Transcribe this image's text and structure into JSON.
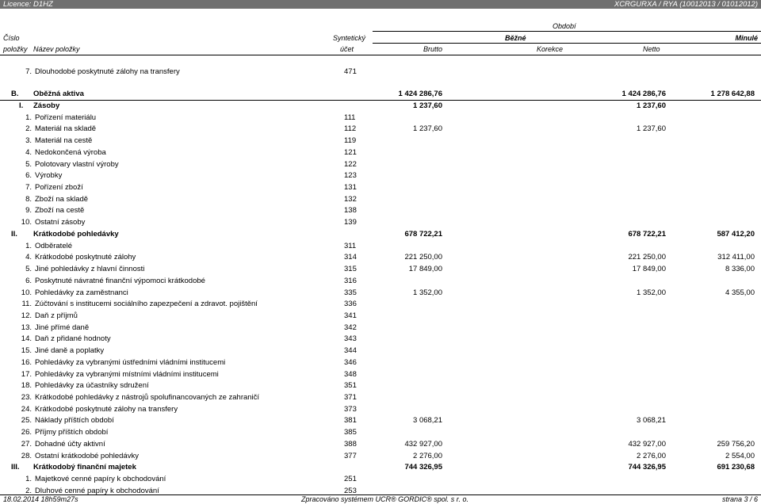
{
  "topbar": {
    "licence": "Licence: D1HZ",
    "code": "XCRGURXA / RYA (10012013 / 01012012)"
  },
  "header": {
    "obdobi": "Období",
    "cislo": "Číslo",
    "polozky": "položky",
    "nazev": "Název položky",
    "synteticky": "Syntetický",
    "ucet": "účet",
    "bezne": "Běžné",
    "minule": "Minulé",
    "brutto": "Brutto",
    "korekce": "Korekce",
    "netto": "Netto"
  },
  "rows": [
    {
      "n": "7.",
      "label": "Dlouhodobé poskytnuté zálohy na transfery",
      "acc": "471",
      "v1": "",
      "v2": "",
      "v3": ""
    },
    {
      "n": "B.",
      "label": "Oběžná aktiva",
      "acc": "",
      "v1": "1 424 286,76",
      "v2": "1 424 286,76",
      "v3": "1 278 642,88"
    },
    {
      "n": "I.",
      "label": "Zásoby",
      "acc": "",
      "v1": "1 237,60",
      "v2": "1 237,60",
      "v3": ""
    },
    {
      "n": "1.",
      "label": "Pořízení materiálu",
      "acc": "111",
      "v1": "",
      "v2": "",
      "v3": ""
    },
    {
      "n": "2.",
      "label": "Materiál na skladě",
      "acc": "112",
      "v1": "1 237,60",
      "v2": "1 237,60",
      "v3": ""
    },
    {
      "n": "3.",
      "label": "Materiál na cestě",
      "acc": "119",
      "v1": "",
      "v2": "",
      "v3": ""
    },
    {
      "n": "4.",
      "label": "Nedokončená výroba",
      "acc": "121",
      "v1": "",
      "v2": "",
      "v3": ""
    },
    {
      "n": "5.",
      "label": "Polotovary vlastní výroby",
      "acc": "122",
      "v1": "",
      "v2": "",
      "v3": ""
    },
    {
      "n": "6.",
      "label": "Výrobky",
      "acc": "123",
      "v1": "",
      "v2": "",
      "v3": ""
    },
    {
      "n": "7.",
      "label": "Pořízení zboží",
      "acc": "131",
      "v1": "",
      "v2": "",
      "v3": ""
    },
    {
      "n": "8.",
      "label": "Zboží na skladě",
      "acc": "132",
      "v1": "",
      "v2": "",
      "v3": ""
    },
    {
      "n": "9.",
      "label": "Zboží na cestě",
      "acc": "138",
      "v1": "",
      "v2": "",
      "v3": ""
    },
    {
      "n": "10.",
      "label": "Ostatní zásoby",
      "acc": "139",
      "v1": "",
      "v2": "",
      "v3": ""
    },
    {
      "n": "II.",
      "label": "Krátkodobé pohledávky",
      "acc": "",
      "v1": "678 722,21",
      "v2": "678 722,21",
      "v3": "587 412,20"
    },
    {
      "n": "1.",
      "label": "Odběratelé",
      "acc": "311",
      "v1": "",
      "v2": "",
      "v3": ""
    },
    {
      "n": "4.",
      "label": "Krátkodobé poskytnuté zálohy",
      "acc": "314",
      "v1": "221 250,00",
      "v2": "221 250,00",
      "v3": "312 411,00"
    },
    {
      "n": "5.",
      "label": "Jiné pohledávky z hlavní činnosti",
      "acc": "315",
      "v1": "17 849,00",
      "v2": "17 849,00",
      "v3": "8 336,00"
    },
    {
      "n": "6.",
      "label": "Poskytnuté návratné finanční výpomoci krátkodobé",
      "acc": "316",
      "v1": "",
      "v2": "",
      "v3": ""
    },
    {
      "n": "10.",
      "label": "Pohledávky za zaměstnanci",
      "acc": "335",
      "v1": "1 352,00",
      "v2": "1 352,00",
      "v3": "4 355,00"
    },
    {
      "n": "11.",
      "label": "Zúčtování s institucemi sociálního zapezpečení a zdravot. pojištění",
      "acc": "336",
      "v1": "",
      "v2": "",
      "v3": ""
    },
    {
      "n": "12.",
      "label": "Daň z příjmů",
      "acc": "341",
      "v1": "",
      "v2": "",
      "v3": ""
    },
    {
      "n": "13.",
      "label": "Jiné přímé daně",
      "acc": "342",
      "v1": "",
      "v2": "",
      "v3": ""
    },
    {
      "n": "14.",
      "label": "Daň z přidané hodnoty",
      "acc": "343",
      "v1": "",
      "v2": "",
      "v3": ""
    },
    {
      "n": "15.",
      "label": "Jiné daně a poplatky",
      "acc": "344",
      "v1": "",
      "v2": "",
      "v3": ""
    },
    {
      "n": "16.",
      "label": "Pohledávky za vybranými ústředními vládními institucemi",
      "acc": "346",
      "v1": "",
      "v2": "",
      "v3": ""
    },
    {
      "n": "17.",
      "label": "Pohledávky za vybranými místními vládními institucemi",
      "acc": "348",
      "v1": "",
      "v2": "",
      "v3": ""
    },
    {
      "n": "18.",
      "label": "Pohledávky za účastníky sdružení",
      "acc": "351",
      "v1": "",
      "v2": "",
      "v3": ""
    },
    {
      "n": "23.",
      "label": "Krátkodobé pohledávky z nástrojů spolufinancovaných ze zahraničí",
      "acc": "371",
      "v1": "",
      "v2": "",
      "v3": ""
    },
    {
      "n": "24.",
      "label": "Krátkodobé poskytnuté zálohy na transfery",
      "acc": "373",
      "v1": "",
      "v2": "",
      "v3": ""
    },
    {
      "n": "25.",
      "label": "Náklady příštích období",
      "acc": "381",
      "v1": "3 068,21",
      "v2": "3 068,21",
      "v3": ""
    },
    {
      "n": "26.",
      "label": "Příjmy příštích období",
      "acc": "385",
      "v1": "",
      "v2": "",
      "v3": ""
    },
    {
      "n": "27.",
      "label": "Dohadné účty aktivní",
      "acc": "388",
      "v1": "432 927,00",
      "v2": "432 927,00",
      "v3": "259 756,20"
    },
    {
      "n": "28.",
      "label": "Ostatní krátkodobé pohledávky",
      "acc": "377",
      "v1": "2 276,00",
      "v2": "2 276,00",
      "v3": "2 554,00"
    },
    {
      "n": "III.",
      "label": "Krátkodobý finanční majetek",
      "acc": "",
      "v1": "744 326,95",
      "v2": "744 326,95",
      "v3": "691 230,68"
    },
    {
      "n": "1.",
      "label": "Majetkové cenné papíry k obchodování",
      "acc": "251",
      "v1": "",
      "v2": "",
      "v3": ""
    },
    {
      "n": "2.",
      "label": "Dluhové cenné papíry k obchodování",
      "acc": "253",
      "v1": "",
      "v2": "",
      "v3": ""
    }
  ],
  "footer": {
    "datetime": "18.02.2014 18h59m27s",
    "system": "Zpracováno systémem UCR® GORDIC® spol. s r. o.",
    "page": "strana 3 / 6"
  }
}
